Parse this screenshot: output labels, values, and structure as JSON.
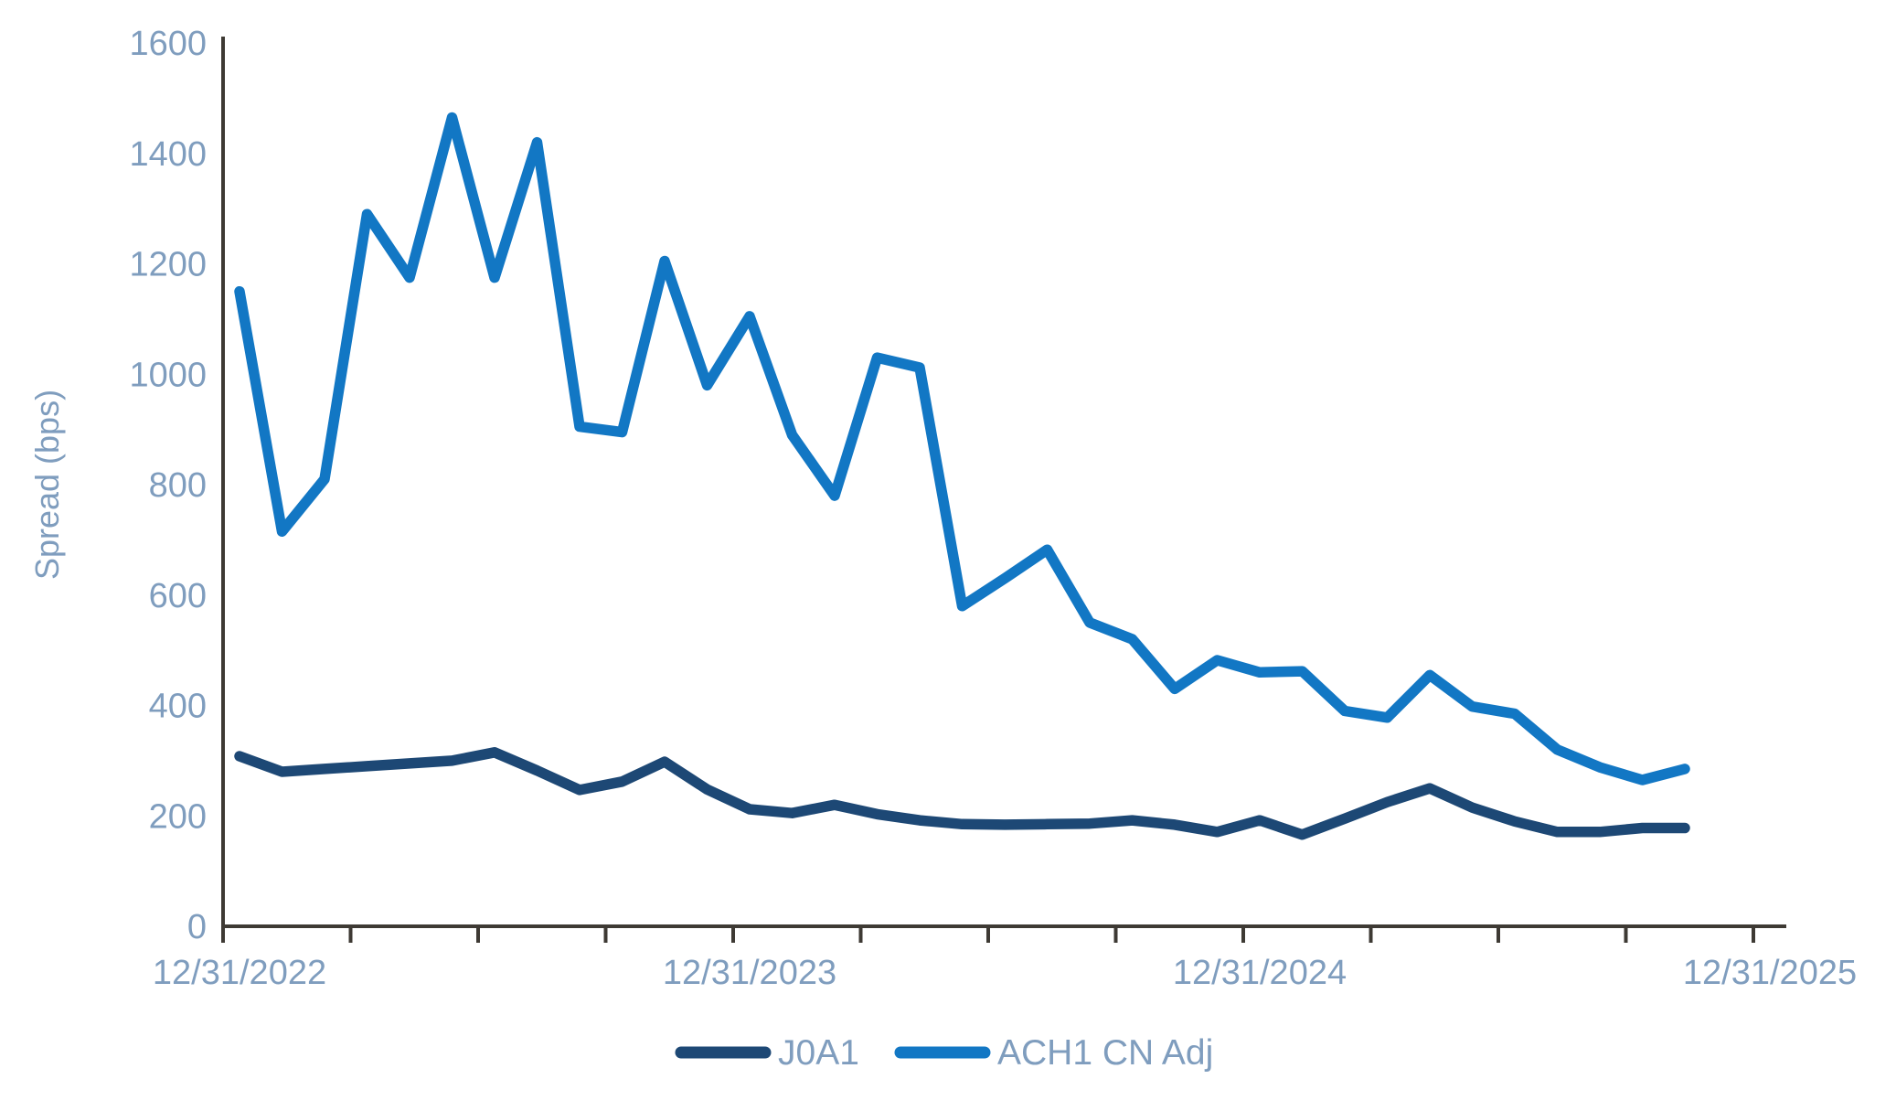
{
  "page": {
    "background": "#FFFFFF"
  },
  "chart_data": {
    "type": "line",
    "title": "",
    "xlabel": "",
    "ylabel": "Spread (bps)",
    "ylim": [
      0,
      1600
    ],
    "y_ticks": [
      0,
      200,
      400,
      600,
      800,
      1000,
      1200,
      1400,
      1600
    ],
    "grid": "off",
    "legend_position": "bottom-center",
    "x_axis": {
      "unit": "monthly",
      "start_label": "12/31/2022",
      "end_label": "12/31/2025",
      "minor_tick_every_months": 3,
      "labels": [
        {
          "label": "12/31/2022",
          "month": 0
        },
        {
          "label": "12/31/2023",
          "month": 12
        },
        {
          "label": "12/31/2024",
          "month": 24
        },
        {
          "label": "12/31/2025",
          "month": 36
        }
      ]
    },
    "colors": {
      "axis_line": "#3E3A34",
      "tick_text": "#7F9DBE"
    },
    "series": [
      {
        "name": "J0A1",
        "color": "#1D4875",
        "start_month": 0,
        "values": [
          308,
          280,
          285,
          290,
          295,
          300,
          315,
          282,
          247,
          262,
          298,
          248,
          212,
          205,
          220,
          203,
          192,
          185,
          184,
          185,
          186,
          192,
          184,
          171,
          192,
          166,
          195,
          225,
          250,
          215,
          190,
          171,
          171,
          178,
          178
        ]
      },
      {
        "name": "ACH1 CN Adj",
        "color": "#1277C4",
        "start_month": 0,
        "values": [
          1150,
          715,
          810,
          1290,
          1175,
          1465,
          1175,
          1420,
          905,
          895,
          1205,
          980,
          1105,
          890,
          780,
          1030,
          1012,
          580,
          630,
          682,
          550,
          520,
          430,
          482,
          460,
          462,
          390,
          378,
          455,
          398,
          385,
          320,
          288,
          265,
          285
        ]
      }
    ]
  }
}
